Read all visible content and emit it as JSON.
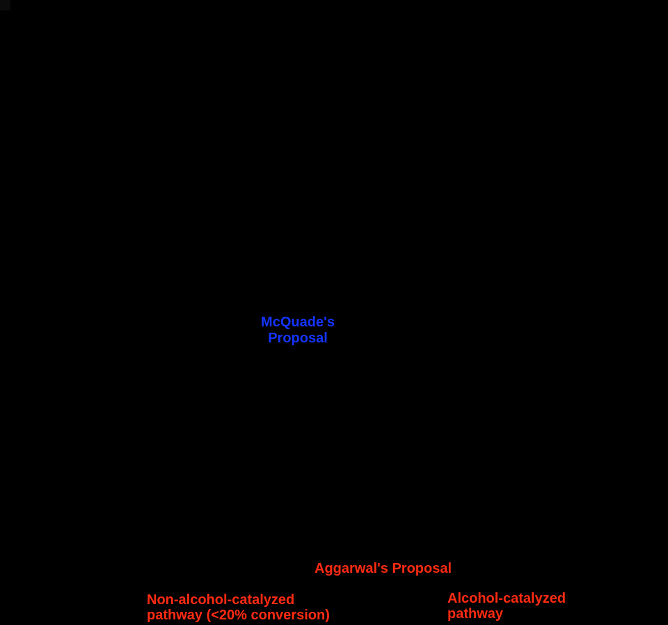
{
  "canvas": {
    "background_color": "#000000",
    "corner_artifact_color": "#0b0b0b"
  },
  "labels": {
    "mcquade": {
      "line1": "McQuade's",
      "line2": "Proposal",
      "color": "#1434ff"
    },
    "aggarwal": {
      "text": "Aggarwal's Proposal",
      "color": "#ff2b12"
    },
    "non_alcohol_pathway": {
      "line1": "Non-alcohol-catalyzed",
      "line2": "pathway (<20% conversion)",
      "color": "#ff2b12"
    },
    "alcohol_pathway": {
      "line1": "Alcohol-catalyzed",
      "line2": "pathway",
      "color": "#ff2b12"
    }
  }
}
